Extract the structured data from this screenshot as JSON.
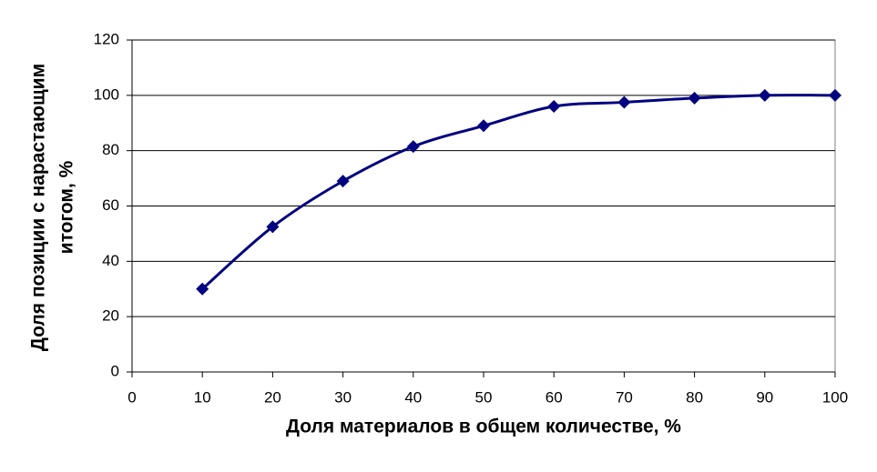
{
  "chart_data": {
    "type": "line",
    "xlabel": "Доля материалов в общем количестве, %",
    "ylabel_lines": [
      "Доля позиции с нарастающим",
      "итогом, %"
    ],
    "x": [
      10,
      20,
      30,
      40,
      50,
      60,
      70,
      80,
      90,
      100
    ],
    "series": [
      {
        "name": "Доля позиции с нарастающим итогом",
        "color": "#000080",
        "values": [
          30,
          52.5,
          69,
          81.5,
          89,
          96,
          97.5,
          99,
          100,
          100
        ]
      }
    ],
    "xlim": [
      0,
      100
    ],
    "xticks": [
      0,
      10,
      20,
      30,
      40,
      50,
      60,
      70,
      80,
      90,
      100
    ],
    "ylim": [
      0,
      120
    ],
    "yticks": [
      0,
      20,
      40,
      60,
      80,
      100,
      120
    ],
    "grid": true,
    "smooth": true,
    "marker": "diamond"
  }
}
